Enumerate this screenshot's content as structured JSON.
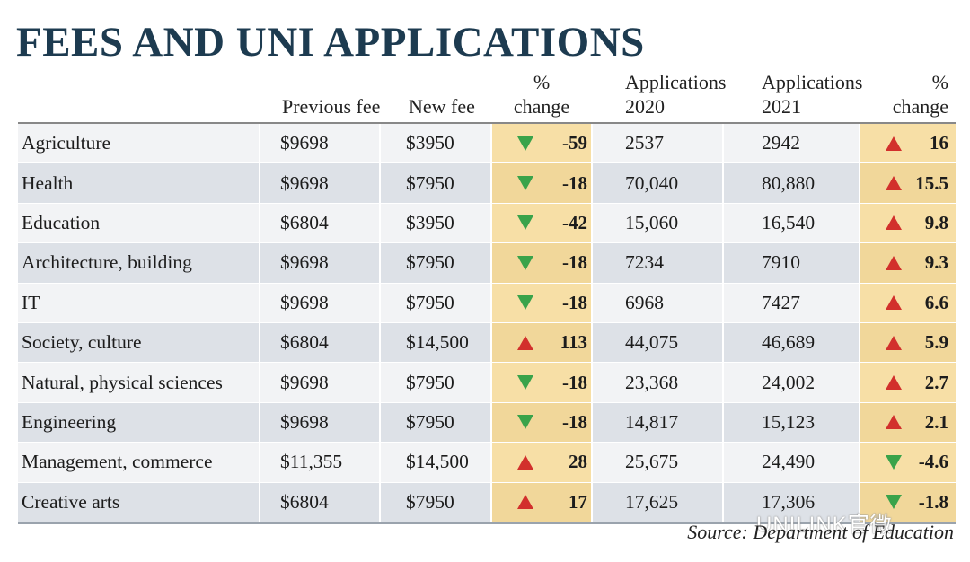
{
  "title": "FEES AND UNI APPLICATIONS",
  "source": "Source: Department of Education",
  "watermark": "UNILINK官微",
  "colors": {
    "title": "#1d3b50",
    "up": "#d2302c",
    "down": "#3aa34a",
    "pct_bg": "#f7dfa6"
  },
  "chart_data": {
    "type": "table",
    "title": "FEES AND UNI APPLICATIONS",
    "columns": [
      {
        "key": "field",
        "label": ""
      },
      {
        "key": "prev_fee",
        "label": "Previous fee"
      },
      {
        "key": "new_fee",
        "label": "New fee"
      },
      {
        "key": "fee_change",
        "label": "% change"
      },
      {
        "key": "apps2020",
        "label": "Applications 2020"
      },
      {
        "key": "apps2021",
        "label": "Applications 2021"
      },
      {
        "key": "apps_change",
        "label": "% change"
      }
    ],
    "header_lines": {
      "prev_fee": [
        "Previous fee"
      ],
      "new_fee": [
        "New fee"
      ],
      "fee_change": [
        "%",
        "change"
      ],
      "apps2020": [
        "Applications",
        "2020"
      ],
      "apps2021": [
        "Applications",
        "2021"
      ],
      "apps_change": [
        "%",
        "change"
      ]
    },
    "rows": [
      {
        "field": "Agriculture",
        "prev_fee": "$9698",
        "new_fee": "$3950",
        "fee_change": "-59",
        "fee_dir": "down",
        "apps2020": "2537",
        "apps2021": "2942",
        "apps_change": "16",
        "apps_dir": "up"
      },
      {
        "field": "Health",
        "prev_fee": "$9698",
        "new_fee": "$7950",
        "fee_change": "-18",
        "fee_dir": "down",
        "apps2020": "70,040",
        "apps2021": "80,880",
        "apps_change": "15.5",
        "apps_dir": "up"
      },
      {
        "field": "Education",
        "prev_fee": "$6804",
        "new_fee": "$3950",
        "fee_change": "-42",
        "fee_dir": "down",
        "apps2020": "15,060",
        "apps2021": "16,540",
        "apps_change": "9.8",
        "apps_dir": "up"
      },
      {
        "field": "Architecture, building",
        "prev_fee": "$9698",
        "new_fee": "$7950",
        "fee_change": "-18",
        "fee_dir": "down",
        "apps2020": "7234",
        "apps2021": "7910",
        "apps_change": "9.3",
        "apps_dir": "up"
      },
      {
        "field": "IT",
        "prev_fee": "$9698",
        "new_fee": "$7950",
        "fee_change": "-18",
        "fee_dir": "down",
        "apps2020": "6968",
        "apps2021": "7427",
        "apps_change": "6.6",
        "apps_dir": "up"
      },
      {
        "field": "Society, culture",
        "prev_fee": "$6804",
        "new_fee": "$14,500",
        "fee_change": "113",
        "fee_dir": "up",
        "apps2020": "44,075",
        "apps2021": "46,689",
        "apps_change": "5.9",
        "apps_dir": "up"
      },
      {
        "field": "Natural, physical sciences",
        "prev_fee": "$9698",
        "new_fee": "$7950",
        "fee_change": "-18",
        "fee_dir": "down",
        "apps2020": "23,368",
        "apps2021": "24,002",
        "apps_change": "2.7",
        "apps_dir": "up"
      },
      {
        "field": "Engineering",
        "prev_fee": "$9698",
        "new_fee": "$7950",
        "fee_change": "-18",
        "fee_dir": "down",
        "apps2020": "14,817",
        "apps2021": "15,123",
        "apps_change": "2.1",
        "apps_dir": "up"
      },
      {
        "field": "Management, commerce",
        "prev_fee": "$11,355",
        "new_fee": "$14,500",
        "fee_change": "28",
        "fee_dir": "up",
        "apps2020": "25,675",
        "apps2021": "24,490",
        "apps_change": "-4.6",
        "apps_dir": "down"
      },
      {
        "field": "Creative arts",
        "prev_fee": "$6804",
        "new_fee": "$7950",
        "fee_change": "17",
        "fee_dir": "up",
        "apps2020": "17,625",
        "apps2021": "17,306",
        "apps_change": "-1.8",
        "apps_dir": "down"
      }
    ]
  }
}
